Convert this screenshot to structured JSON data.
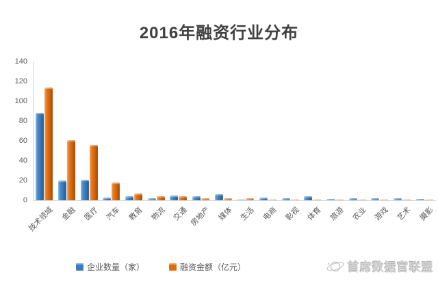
{
  "title": "2016年融资行业分布",
  "chart_data": {
    "type": "bar",
    "title": "2016年融资行业分布",
    "categories": [
      "技术领域",
      "金融",
      "医疗",
      "汽车",
      "教育",
      "物流",
      "交通",
      "房地产",
      "媒体",
      "生活",
      "电商",
      "影视",
      "体育",
      "旅游",
      "农业",
      "游戏",
      "艺术",
      "摄影"
    ],
    "series": [
      {
        "name": "企业数量（家）",
        "color": "#3a7bbf",
        "values": [
          88,
          20,
          21,
          3,
          4,
          2,
          5,
          4,
          6,
          1,
          3,
          2,
          4,
          1.5,
          2,
          2,
          2,
          1.5
        ]
      },
      {
        "name": "融资金额（亿元）",
        "color": "#e26b0a",
        "values": [
          114,
          61,
          56,
          18,
          7,
          4,
          4,
          2,
          2,
          2,
          1,
          1,
          1,
          0.5,
          0.5,
          0.5,
          0.3,
          0.3
        ]
      }
    ],
    "xlabel": "",
    "ylabel": "",
    "ylim": [
      0,
      140
    ],
    "yticks": [
      0,
      20,
      40,
      60,
      80,
      100,
      120,
      140
    ],
    "grid": false,
    "legend_position": "bottom",
    "x_tick_rotation": 45
  },
  "legend": {
    "items": [
      {
        "label": "企业数量（家）",
        "color": "#3a7bbf"
      },
      {
        "label": "融资金额（亿元）",
        "color": "#e26b0a"
      }
    ]
  },
  "watermark": {
    "text": "首席数据官联盟",
    "icon": "globe-orbit-icon"
  }
}
